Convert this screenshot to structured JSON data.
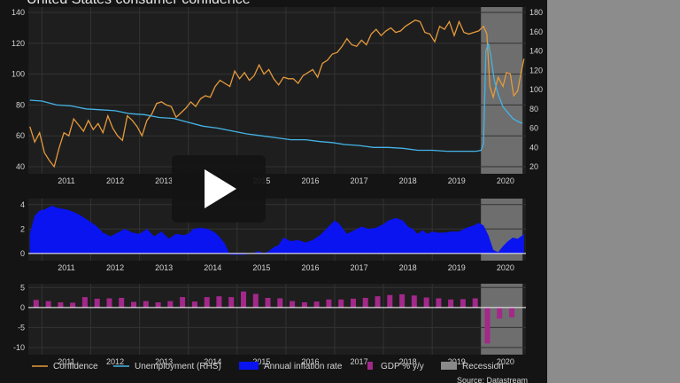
{
  "title": "United States consumer confidence",
  "source": "Source: Datastream",
  "player": {
    "play_icon": "play-icon"
  },
  "legend": {
    "confidence": "Confidence",
    "unemployment": "Unemployment (RHS)",
    "inflation": "Annual inflation rate",
    "gdp": "GDP % y/y",
    "recession": "Recession"
  },
  "colors": {
    "confidence": "#e59a3c",
    "unemployment": "#45b3e6",
    "inflation": "#0a14f0",
    "gdp": "#a3288a",
    "recession": "#8a8a8a",
    "background": "#141414",
    "grid": "#333333"
  },
  "chart_data": [
    {
      "type": "line",
      "x_categories": [
        "2011",
        "2012",
        "2013",
        "2014",
        "2015",
        "2016",
        "2017",
        "2018",
        "2019",
        "2020"
      ],
      "recession": {
        "start": 2020.0,
        "end": 2020.85
      },
      "y_left_ticks": [
        "40",
        "60",
        "80",
        "100",
        "120",
        "140"
      ],
      "y_right_ticks": [
        "20",
        "40",
        "60",
        "80",
        "100",
        "120",
        "140",
        "160",
        "180"
      ],
      "ylim_left": [
        40,
        140
      ],
      "ylim_right": [
        20,
        180
      ],
      "series": [
        {
          "name": "Confidence",
          "axis": "left",
          "points": [
            [
              2010.75,
              66
            ],
            [
              2010.85,
              56
            ],
            [
              2010.95,
              62
            ],
            [
              2011.05,
              49
            ],
            [
              2011.15,
              44
            ],
            [
              2011.25,
              40
            ],
            [
              2011.35,
              52
            ],
            [
              2011.45,
              62
            ],
            [
              2011.55,
              60
            ],
            [
              2011.65,
              71
            ],
            [
              2011.75,
              67
            ],
            [
              2011.85,
              63
            ],
            [
              2011.95,
              70
            ],
            [
              2012.05,
              64
            ],
            [
              2012.15,
              68
            ],
            [
              2012.25,
              62
            ],
            [
              2012.35,
              73
            ],
            [
              2012.45,
              65
            ],
            [
              2012.55,
              60
            ],
            [
              2012.65,
              57
            ],
            [
              2012.75,
              73
            ],
            [
              2012.85,
              70
            ],
            [
              2012.95,
              66
            ],
            [
              2013.05,
              60
            ],
            [
              2013.15,
              70
            ],
            [
              2013.25,
              74
            ],
            [
              2013.35,
              81
            ],
            [
              2013.45,
              82
            ],
            [
              2013.55,
              80
            ],
            [
              2013.65,
              79
            ],
            [
              2013.75,
              72
            ],
            [
              2013.85,
              75
            ],
            [
              2013.95,
              78
            ],
            [
              2014.05,
              82
            ],
            [
              2014.15,
              79
            ],
            [
              2014.25,
              84
            ],
            [
              2014.35,
              86
            ],
            [
              2014.45,
              85
            ],
            [
              2014.55,
              92
            ],
            [
              2014.65,
              96
            ],
            [
              2014.75,
              94
            ],
            [
              2014.85,
              92
            ],
            [
              2014.95,
              102
            ],
            [
              2015.05,
              97
            ],
            [
              2015.15,
              101
            ],
            [
              2015.25,
              96
            ],
            [
              2015.35,
              99
            ],
            [
              2015.45,
              106
            ],
            [
              2015.55,
              100
            ],
            [
              2015.65,
              103
            ],
            [
              2015.75,
              97
            ],
            [
              2015.85,
              93
            ],
            [
              2015.95,
              98
            ],
            [
              2016.05,
              97
            ],
            [
              2016.15,
              97
            ],
            [
              2016.25,
              94
            ],
            [
              2016.35,
              99
            ],
            [
              2016.45,
              101
            ],
            [
              2016.55,
              103
            ],
            [
              2016.65,
              98
            ],
            [
              2016.75,
              107
            ],
            [
              2016.85,
              109
            ],
            [
              2016.95,
              113
            ],
            [
              2017.05,
              114
            ],
            [
              2017.15,
              118
            ],
            [
              2017.25,
              123
            ],
            [
              2017.35,
              119
            ],
            [
              2017.45,
              118
            ],
            [
              2017.55,
              122
            ],
            [
              2017.65,
              119
            ],
            [
              2017.75,
              126
            ],
            [
              2017.85,
              129
            ],
            [
              2017.95,
              125
            ],
            [
              2018.05,
              128
            ],
            [
              2018.15,
              130
            ],
            [
              2018.25,
              127
            ],
            [
              2018.35,
              128
            ],
            [
              2018.45,
              131
            ],
            [
              2018.55,
              133
            ],
            [
              2018.65,
              135
            ],
            [
              2018.75,
              134
            ],
            [
              2018.85,
              127
            ],
            [
              2018.95,
              126
            ],
            [
              2019.05,
              121
            ],
            [
              2019.15,
              131
            ],
            [
              2019.25,
              129
            ],
            [
              2019.35,
              134
            ],
            [
              2019.45,
              125
            ],
            [
              2019.55,
              134
            ],
            [
              2019.65,
              127
            ],
            [
              2019.75,
              126
            ],
            [
              2019.85,
              127
            ],
            [
              2019.95,
              128
            ],
            [
              2020.05,
              131
            ],
            [
              2020.12,
              126
            ],
            [
              2020.18,
              92
            ],
            [
              2020.25,
              85
            ],
            [
              2020.35,
              98
            ],
            [
              2020.45,
              92
            ],
            [
              2020.52,
              101
            ],
            [
              2020.6,
              100
            ],
            [
              2020.67,
              86
            ],
            [
              2020.75,
              89
            ],
            [
              2020.82,
              101
            ],
            [
              2020.88,
              110
            ]
          ]
        },
        {
          "name": "Unemployment (RHS)",
          "axis": "right",
          "points": [
            [
              2010.75,
              89
            ],
            [
              2011.0,
              88
            ],
            [
              2011.3,
              84
            ],
            [
              2011.6,
              83
            ],
            [
              2011.9,
              80
            ],
            [
              2012.2,
              79
            ],
            [
              2012.5,
              78
            ],
            [
              2012.8,
              75
            ],
            [
              2013.1,
              74
            ],
            [
              2013.4,
              71
            ],
            [
              2013.7,
              70
            ],
            [
              2014.0,
              66
            ],
            [
              2014.3,
              62
            ],
            [
              2014.6,
              60
            ],
            [
              2014.9,
              57
            ],
            [
              2015.2,
              54
            ],
            [
              2015.5,
              52
            ],
            [
              2015.8,
              50
            ],
            [
              2016.1,
              48
            ],
            [
              2016.4,
              48
            ],
            [
              2016.7,
              46
            ],
            [
              2016.95,
              45
            ],
            [
              2017.2,
              43
            ],
            [
              2017.5,
              42
            ],
            [
              2017.8,
              40
            ],
            [
              2018.1,
              40
            ],
            [
              2018.4,
              39
            ],
            [
              2018.7,
              37
            ],
            [
              2019.0,
              37
            ],
            [
              2019.3,
              36
            ],
            [
              2019.6,
              36
            ],
            [
              2019.9,
              36
            ],
            [
              2020.0,
              37
            ],
            [
              2020.05,
              44
            ],
            [
              2020.1,
              140
            ],
            [
              2020.15,
              148
            ],
            [
              2020.2,
              135
            ],
            [
              2020.27,
              110
            ],
            [
              2020.35,
              95
            ],
            [
              2020.45,
              82
            ],
            [
              2020.55,
              76
            ],
            [
              2020.65,
              70
            ],
            [
              2020.75,
              67
            ],
            [
              2020.85,
              65
            ]
          ]
        }
      ]
    },
    {
      "type": "area",
      "name": "Annual inflation rate",
      "x_categories": [
        "2011",
        "2012",
        "2013",
        "2014",
        "2015",
        "2016",
        "2017",
        "2018",
        "2019",
        "2020"
      ],
      "y_ticks": [
        "0",
        "2",
        "4"
      ],
      "ylim": [
        -0.3,
        4.2
      ],
      "points": [
        [
          2010.75,
          1.6
        ],
        [
          2010.85,
          3.1
        ],
        [
          2010.95,
          3.5
        ],
        [
          2011.05,
          3.6
        ],
        [
          2011.2,
          3.9
        ],
        [
          2011.35,
          3.7
        ],
        [
          2011.5,
          3.6
        ],
        [
          2011.65,
          3.4
        ],
        [
          2011.8,
          3.1
        ],
        [
          2011.95,
          2.7
        ],
        [
          2012.1,
          2.3
        ],
        [
          2012.25,
          1.7
        ],
        [
          2012.4,
          1.4
        ],
        [
          2012.55,
          1.7
        ],
        [
          2012.7,
          2.0
        ],
        [
          2012.85,
          1.7
        ],
        [
          2013.0,
          1.6
        ],
        [
          2013.15,
          2.0
        ],
        [
          2013.3,
          1.4
        ],
        [
          2013.45,
          1.8
        ],
        [
          2013.6,
          1.2
        ],
        [
          2013.75,
          1.6
        ],
        [
          2013.9,
          1.5
        ],
        [
          2014.0,
          1.6
        ],
        [
          2014.1,
          2.0
        ],
        [
          2014.25,
          2.1
        ],
        [
          2014.4,
          2.0
        ],
        [
          2014.55,
          1.7
        ],
        [
          2014.65,
          1.3
        ],
        [
          2014.75,
          0.8
        ],
        [
          2014.85,
          -0.1
        ],
        [
          2015.0,
          -0.1
        ],
        [
          2015.15,
          -0.1
        ],
        [
          2015.3,
          0.0
        ],
        [
          2015.45,
          0.2
        ],
        [
          2015.55,
          0.0
        ],
        [
          2015.65,
          0.2
        ],
        [
          2015.75,
          0.5
        ],
        [
          2015.85,
          0.7
        ],
        [
          2015.95,
          1.3
        ],
        [
          2016.1,
          1.0
        ],
        [
          2016.25,
          1.1
        ],
        [
          2016.4,
          0.9
        ],
        [
          2016.55,
          1.1
        ],
        [
          2016.7,
          1.5
        ],
        [
          2016.85,
          2.1
        ],
        [
          2017.0,
          2.7
        ],
        [
          2017.1,
          2.4
        ],
        [
          2017.25,
          1.6
        ],
        [
          2017.4,
          1.9
        ],
        [
          2017.55,
          2.2
        ],
        [
          2017.7,
          2.0
        ],
        [
          2017.85,
          2.1
        ],
        [
          2018.0,
          2.4
        ],
        [
          2018.1,
          2.7
        ],
        [
          2018.25,
          2.9
        ],
        [
          2018.4,
          2.7
        ],
        [
          2018.5,
          2.2
        ],
        [
          2018.6,
          2.0
        ],
        [
          2018.7,
          1.6
        ],
        [
          2018.8,
          1.9
        ],
        [
          2018.9,
          1.6
        ],
        [
          2019.0,
          1.8
        ],
        [
          2019.1,
          1.7
        ],
        [
          2019.25,
          1.7
        ],
        [
          2019.4,
          1.8
        ],
        [
          2019.55,
          1.8
        ],
        [
          2019.7,
          2.1
        ],
        [
          2019.85,
          2.3
        ],
        [
          2019.95,
          2.5
        ],
        [
          2020.05,
          2.3
        ],
        [
          2020.15,
          1.5
        ],
        [
          2020.25,
          0.3
        ],
        [
          2020.35,
          0.1
        ],
        [
          2020.45,
          0.6
        ],
        [
          2020.55,
          1.0
        ],
        [
          2020.65,
          1.3
        ],
        [
          2020.75,
          1.2
        ],
        [
          2020.82,
          1.4
        ],
        [
          2020.88,
          1.6
        ]
      ]
    },
    {
      "type": "bar",
      "name": "GDP % y/y",
      "x_categories": [
        "2011",
        "2012",
        "2013",
        "2014",
        "2015",
        "2016",
        "2017",
        "2018",
        "2019",
        "2020"
      ],
      "y_ticks": [
        "5",
        "0",
        "-5",
        "-10"
      ],
      "ylim": [
        -10,
        5.5
      ],
      "bars": [
        [
          2010.88,
          1.9
        ],
        [
          2011.13,
          1.6
        ],
        [
          2011.38,
          1.3
        ],
        [
          2011.63,
          1.2
        ],
        [
          2011.88,
          2.6
        ],
        [
          2012.13,
          2.2
        ],
        [
          2012.38,
          2.3
        ],
        [
          2012.63,
          2.4
        ],
        [
          2012.88,
          1.4
        ],
        [
          2013.13,
          1.6
        ],
        [
          2013.38,
          1.3
        ],
        [
          2013.63,
          1.6
        ],
        [
          2013.88,
          2.6
        ],
        [
          2014.13,
          1.5
        ],
        [
          2014.38,
          2.6
        ],
        [
          2014.63,
          2.8
        ],
        [
          2014.88,
          2.6
        ],
        [
          2015.13,
          4.0
        ],
        [
          2015.38,
          3.4
        ],
        [
          2015.63,
          2.4
        ],
        [
          2015.88,
          2.3
        ],
        [
          2016.13,
          1.6
        ],
        [
          2016.38,
          1.3
        ],
        [
          2016.63,
          1.5
        ],
        [
          2016.88,
          2.0
        ],
        [
          2017.13,
          2.0
        ],
        [
          2017.38,
          2.2
        ],
        [
          2017.63,
          2.4
        ],
        [
          2017.88,
          2.8
        ],
        [
          2018.13,
          3.1
        ],
        [
          2018.38,
          3.3
        ],
        [
          2018.63,
          3.0
        ],
        [
          2018.88,
          2.5
        ],
        [
          2019.13,
          2.3
        ],
        [
          2019.38,
          2.0
        ],
        [
          2019.63,
          2.1
        ],
        [
          2019.88,
          2.3
        ],
        [
          2020.13,
          -9.0
        ],
        [
          2020.38,
          -2.8
        ],
        [
          2020.63,
          -2.5
        ]
      ]
    }
  ]
}
